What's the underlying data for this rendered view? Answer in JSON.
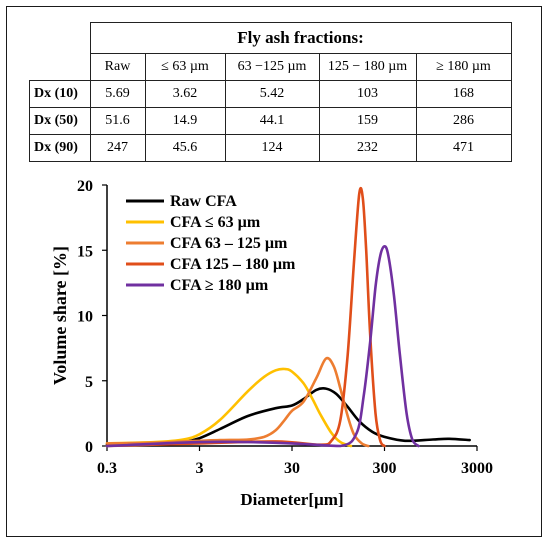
{
  "table": {
    "title": "Fly ash fractions:",
    "columns": [
      "Raw",
      "≤ 63 µm",
      "63 −125 µm",
      "125 − 180 µm",
      "≥ 180 µm"
    ],
    "rows": [
      {
        "label": "Dx (10)",
        "values": [
          "5.69",
          "3.62",
          "5.42",
          "103",
          "168"
        ]
      },
      {
        "label": "Dx (50)",
        "values": [
          "51.6",
          "14.9",
          "44.1",
          "159",
          "286"
        ]
      },
      {
        "label": "Dx (90)",
        "values": [
          "247",
          "45.6",
          "124",
          "232",
          "471"
        ]
      }
    ]
  },
  "chart_data": {
    "type": "line",
    "title": "",
    "xlabel": "Diameter[µm]",
    "ylabel": "Volume share [%]",
    "xscale": "log",
    "xlim": [
      0.3,
      3000
    ],
    "ylim": [
      0,
      20
    ],
    "xticks": [
      "0.3",
      "3",
      "30",
      "300",
      "3000"
    ],
    "xtick_values": [
      0.3,
      3,
      30,
      300,
      3000
    ],
    "yticks": [
      "0",
      "5",
      "10",
      "15",
      "20"
    ],
    "ytick_values": [
      0,
      5,
      10,
      15,
      20
    ],
    "grid": false,
    "legend": "top-left",
    "series": [
      {
        "name": "Raw CFA",
        "color": "#000000",
        "x": [
          0.3,
          1,
          2,
          3,
          5,
          10,
          20,
          30,
          40,
          55,
          70,
          90,
          120,
          160,
          220,
          300,
          500,
          1000,
          1500,
          2500
        ],
        "y": [
          0.1,
          0.15,
          0.3,
          0.6,
          1.3,
          2.3,
          2.9,
          3.1,
          3.6,
          4.3,
          4.4,
          4.0,
          3.0,
          1.9,
          1.1,
          0.7,
          0.4,
          0.5,
          0.55,
          0.45
        ]
      },
      {
        "name": "CFA ≤ 63 µm",
        "color": "#ffc000",
        "x": [
          0.3,
          1,
          2,
          3,
          5,
          10,
          15,
          20,
          25,
          30,
          40,
          50,
          60,
          80,
          100,
          130
        ],
        "y": [
          0.2,
          0.3,
          0.5,
          0.9,
          2.0,
          4.2,
          5.3,
          5.8,
          5.9,
          5.7,
          4.8,
          3.6,
          2.5,
          1.0,
          0.3,
          0.0
        ]
      },
      {
        "name": "CFA 63 – 125 µm",
        "color": "#ed7d31",
        "x": [
          0.3,
          1,
          2,
          3,
          5,
          10,
          15,
          20,
          25,
          30,
          40,
          55,
          70,
          85,
          100,
          120,
          140,
          170,
          200
        ],
        "y": [
          0.2,
          0.25,
          0.35,
          0.4,
          0.45,
          0.5,
          0.7,
          1.2,
          2.0,
          2.7,
          3.4,
          5.2,
          6.7,
          6.1,
          4.4,
          2.3,
          0.9,
          0.2,
          0.0
        ]
      },
      {
        "name": "CFA 125 – 180 µm",
        "color": "#e04e1a",
        "x": [
          0.3,
          3,
          20,
          60,
          80,
          100,
          120,
          140,
          160,
          175,
          190,
          210,
          240,
          270,
          300
        ],
        "y": [
          0.0,
          0.2,
          0.35,
          0.1,
          0.4,
          2.0,
          7.0,
          14.0,
          19.3,
          19.0,
          15.0,
          8.5,
          2.5,
          0.4,
          0.0
        ]
      },
      {
        "name": "CFA ≥ 180 µm",
        "color": "#7030a0",
        "x": [
          0.3,
          3,
          10,
          30,
          100,
          150,
          180,
          210,
          240,
          270,
          300,
          330,
          380,
          440,
          520,
          600,
          700
        ],
        "y": [
          0.0,
          0.3,
          0.3,
          0.2,
          0.0,
          1.0,
          4.0,
          8.0,
          12.2,
          14.6,
          15.3,
          14.6,
          11.5,
          7.0,
          2.5,
          0.5,
          0.0
        ]
      }
    ]
  }
}
